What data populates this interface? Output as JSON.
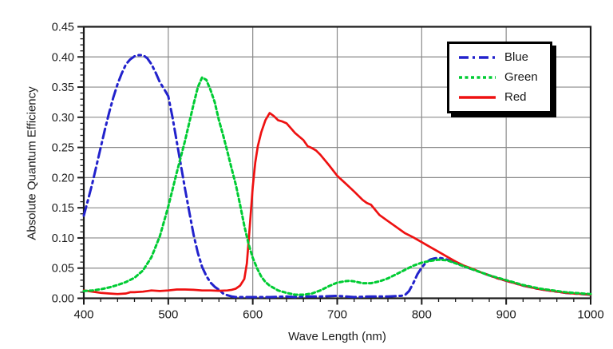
{
  "figure": {
    "background": "#ffffff",
    "text_color": "#1a1a1a",
    "grid_color": "#8a8a8a",
    "axis_color": "#1a1a1a"
  },
  "chart_data": {
    "type": "line",
    "title": "",
    "xlabel": "Wave Length (nm)",
    "ylabel": "Absolute Quantum Efficiency",
    "xlim": [
      400,
      1000
    ],
    "ylim": [
      0,
      0.45
    ],
    "x_major_ticks": [
      400,
      500,
      600,
      700,
      800,
      900,
      1000
    ],
    "x_minor_step": 20,
    "y_major_ticks": [
      0.0,
      0.05,
      0.1,
      0.15,
      0.2,
      0.25,
      0.3,
      0.35,
      0.4,
      0.45
    ],
    "y_minor_step": 0.01,
    "grid": true,
    "legend": {
      "position": "top-right",
      "entries": [
        "Blue",
        "Green",
        "Red"
      ]
    },
    "series": [
      {
        "name": "Blue",
        "color": "#2222cc",
        "line_style": "dash-dot",
        "points": [
          [
            400,
            0.137
          ],
          [
            405,
            0.163
          ],
          [
            410,
            0.19
          ],
          [
            415,
            0.22
          ],
          [
            420,
            0.25
          ],
          [
            425,
            0.28
          ],
          [
            430,
            0.308
          ],
          [
            435,
            0.333
          ],
          [
            440,
            0.355
          ],
          [
            445,
            0.373
          ],
          [
            450,
            0.388
          ],
          [
            455,
            0.396
          ],
          [
            460,
            0.401
          ],
          [
            465,
            0.403
          ],
          [
            470,
            0.403
          ],
          [
            475,
            0.398
          ],
          [
            480,
            0.388
          ],
          [
            485,
            0.374
          ],
          [
            490,
            0.358
          ],
          [
            495,
            0.347
          ],
          [
            500,
            0.335
          ],
          [
            505,
            0.3
          ],
          [
            510,
            0.26
          ],
          [
            515,
            0.22
          ],
          [
            520,
            0.18
          ],
          [
            525,
            0.142
          ],
          [
            530,
            0.105
          ],
          [
            535,
            0.075
          ],
          [
            540,
            0.052
          ],
          [
            545,
            0.037
          ],
          [
            550,
            0.026
          ],
          [
            555,
            0.019
          ],
          [
            560,
            0.014
          ],
          [
            565,
            0.008
          ],
          [
            570,
            0.005
          ],
          [
            575,
            0.003
          ],
          [
            580,
            0.002
          ],
          [
            600,
            0.002
          ],
          [
            620,
            0.002
          ],
          [
            640,
            0.003
          ],
          [
            650,
            0.002
          ],
          [
            660,
            0.003
          ],
          [
            680,
            0.003
          ],
          [
            700,
            0.004
          ],
          [
            710,
            0.003
          ],
          [
            720,
            0.002
          ],
          [
            740,
            0.003
          ],
          [
            760,
            0.003
          ],
          [
            775,
            0.004
          ],
          [
            780,
            0.005
          ],
          [
            785,
            0.012
          ],
          [
            790,
            0.025
          ],
          [
            795,
            0.04
          ],
          [
            800,
            0.051
          ],
          [
            805,
            0.059
          ],
          [
            810,
            0.064
          ],
          [
            815,
            0.066
          ],
          [
            820,
            0.067
          ],
          [
            825,
            0.066
          ],
          [
            830,
            0.064
          ],
          [
            840,
            0.059
          ],
          [
            850,
            0.053
          ],
          [
            860,
            0.048
          ],
          [
            870,
            0.043
          ],
          [
            880,
            0.038
          ],
          [
            890,
            0.033
          ],
          [
            900,
            0.029
          ],
          [
            910,
            0.025
          ],
          [
            920,
            0.021
          ],
          [
            930,
            0.018
          ],
          [
            940,
            0.015
          ],
          [
            950,
            0.013
          ],
          [
            960,
            0.011
          ],
          [
            970,
            0.009
          ],
          [
            980,
            0.008
          ],
          [
            990,
            0.007
          ],
          [
            1000,
            0.006
          ]
        ]
      },
      {
        "name": "Green",
        "color": "#00cc33",
        "line_style": "dotted",
        "points": [
          [
            400,
            0.012
          ],
          [
            410,
            0.013
          ],
          [
            420,
            0.015
          ],
          [
            430,
            0.018
          ],
          [
            440,
            0.022
          ],
          [
            450,
            0.027
          ],
          [
            460,
            0.034
          ],
          [
            470,
            0.046
          ],
          [
            480,
            0.068
          ],
          [
            490,
            0.103
          ],
          [
            500,
            0.152
          ],
          [
            510,
            0.208
          ],
          [
            520,
            0.262
          ],
          [
            530,
            0.322
          ],
          [
            535,
            0.35
          ],
          [
            540,
            0.366
          ],
          [
            545,
            0.362
          ],
          [
            550,
            0.345
          ],
          [
            555,
            0.325
          ],
          [
            560,
            0.295
          ],
          [
            565,
            0.27
          ],
          [
            570,
            0.243
          ],
          [
            575,
            0.215
          ],
          [
            580,
            0.188
          ],
          [
            585,
            0.155
          ],
          [
            590,
            0.12
          ],
          [
            595,
            0.09
          ],
          [
            600,
            0.067
          ],
          [
            605,
            0.05
          ],
          [
            610,
            0.036
          ],
          [
            615,
            0.027
          ],
          [
            620,
            0.021
          ],
          [
            630,
            0.013
          ],
          [
            640,
            0.009
          ],
          [
            650,
            0.006
          ],
          [
            660,
            0.006
          ],
          [
            670,
            0.008
          ],
          [
            680,
            0.013
          ],
          [
            690,
            0.02
          ],
          [
            700,
            0.026
          ],
          [
            710,
            0.0285
          ],
          [
            715,
            0.029
          ],
          [
            720,
            0.028
          ],
          [
            730,
            0.025
          ],
          [
            740,
            0.025
          ],
          [
            750,
            0.028
          ],
          [
            760,
            0.033
          ],
          [
            770,
            0.04
          ],
          [
            780,
            0.047
          ],
          [
            790,
            0.054
          ],
          [
            800,
            0.059
          ],
          [
            810,
            0.062
          ],
          [
            820,
            0.064
          ],
          [
            830,
            0.063
          ],
          [
            840,
            0.058
          ],
          [
            850,
            0.053
          ],
          [
            860,
            0.048
          ],
          [
            870,
            0.043
          ],
          [
            880,
            0.038
          ],
          [
            890,
            0.034
          ],
          [
            900,
            0.03
          ],
          [
            910,
            0.026
          ],
          [
            920,
            0.022
          ],
          [
            930,
            0.019
          ],
          [
            940,
            0.016
          ],
          [
            950,
            0.014
          ],
          [
            960,
            0.012
          ],
          [
            970,
            0.01
          ],
          [
            980,
            0.009
          ],
          [
            990,
            0.008
          ],
          [
            1000,
            0.007
          ]
        ]
      },
      {
        "name": "Red",
        "color": "#ee1111",
        "line_style": "solid",
        "points": [
          [
            400,
            0.013
          ],
          [
            410,
            0.011
          ],
          [
            420,
            0.009
          ],
          [
            430,
            0.008
          ],
          [
            440,
            0.007
          ],
          [
            450,
            0.008
          ],
          [
            455,
            0.01
          ],
          [
            460,
            0.01
          ],
          [
            470,
            0.011
          ],
          [
            480,
            0.013
          ],
          [
            490,
            0.012
          ],
          [
            500,
            0.013
          ],
          [
            510,
            0.0145
          ],
          [
            520,
            0.0145
          ],
          [
            530,
            0.014
          ],
          [
            540,
            0.013
          ],
          [
            550,
            0.013
          ],
          [
            560,
            0.0125
          ],
          [
            570,
            0.013
          ],
          [
            575,
            0.014
          ],
          [
            580,
            0.016
          ],
          [
            585,
            0.021
          ],
          [
            590,
            0.032
          ],
          [
            593,
            0.058
          ],
          [
            596,
            0.11
          ],
          [
            600,
            0.185
          ],
          [
            603,
            0.225
          ],
          [
            606,
            0.252
          ],
          [
            610,
            0.275
          ],
          [
            615,
            0.295
          ],
          [
            620,
            0.307
          ],
          [
            625,
            0.302
          ],
          [
            630,
            0.295
          ],
          [
            635,
            0.293
          ],
          [
            640,
            0.29
          ],
          [
            645,
            0.282
          ],
          [
            650,
            0.274
          ],
          [
            660,
            0.262
          ],
          [
            665,
            0.252
          ],
          [
            670,
            0.249
          ],
          [
            675,
            0.245
          ],
          [
            680,
            0.238
          ],
          [
            690,
            0.221
          ],
          [
            700,
            0.203
          ],
          [
            710,
            0.19
          ],
          [
            720,
            0.177
          ],
          [
            730,
            0.163
          ],
          [
            735,
            0.158
          ],
          [
            740,
            0.155
          ],
          [
            750,
            0.138
          ],
          [
            760,
            0.128
          ],
          [
            770,
            0.118
          ],
          [
            780,
            0.108
          ],
          [
            790,
            0.101
          ],
          [
            800,
            0.093
          ],
          [
            810,
            0.085
          ],
          [
            820,
            0.077
          ],
          [
            830,
            0.069
          ],
          [
            840,
            0.061
          ],
          [
            850,
            0.054
          ],
          [
            860,
            0.049
          ],
          [
            870,
            0.043
          ],
          [
            880,
            0.038
          ],
          [
            890,
            0.033
          ],
          [
            900,
            0.029
          ],
          [
            910,
            0.025
          ],
          [
            920,
            0.021
          ],
          [
            930,
            0.018
          ],
          [
            940,
            0.015
          ],
          [
            950,
            0.013
          ],
          [
            960,
            0.011
          ],
          [
            970,
            0.009
          ],
          [
            980,
            0.008
          ],
          [
            990,
            0.007
          ],
          [
            1000,
            0.006
          ]
        ]
      }
    ]
  }
}
